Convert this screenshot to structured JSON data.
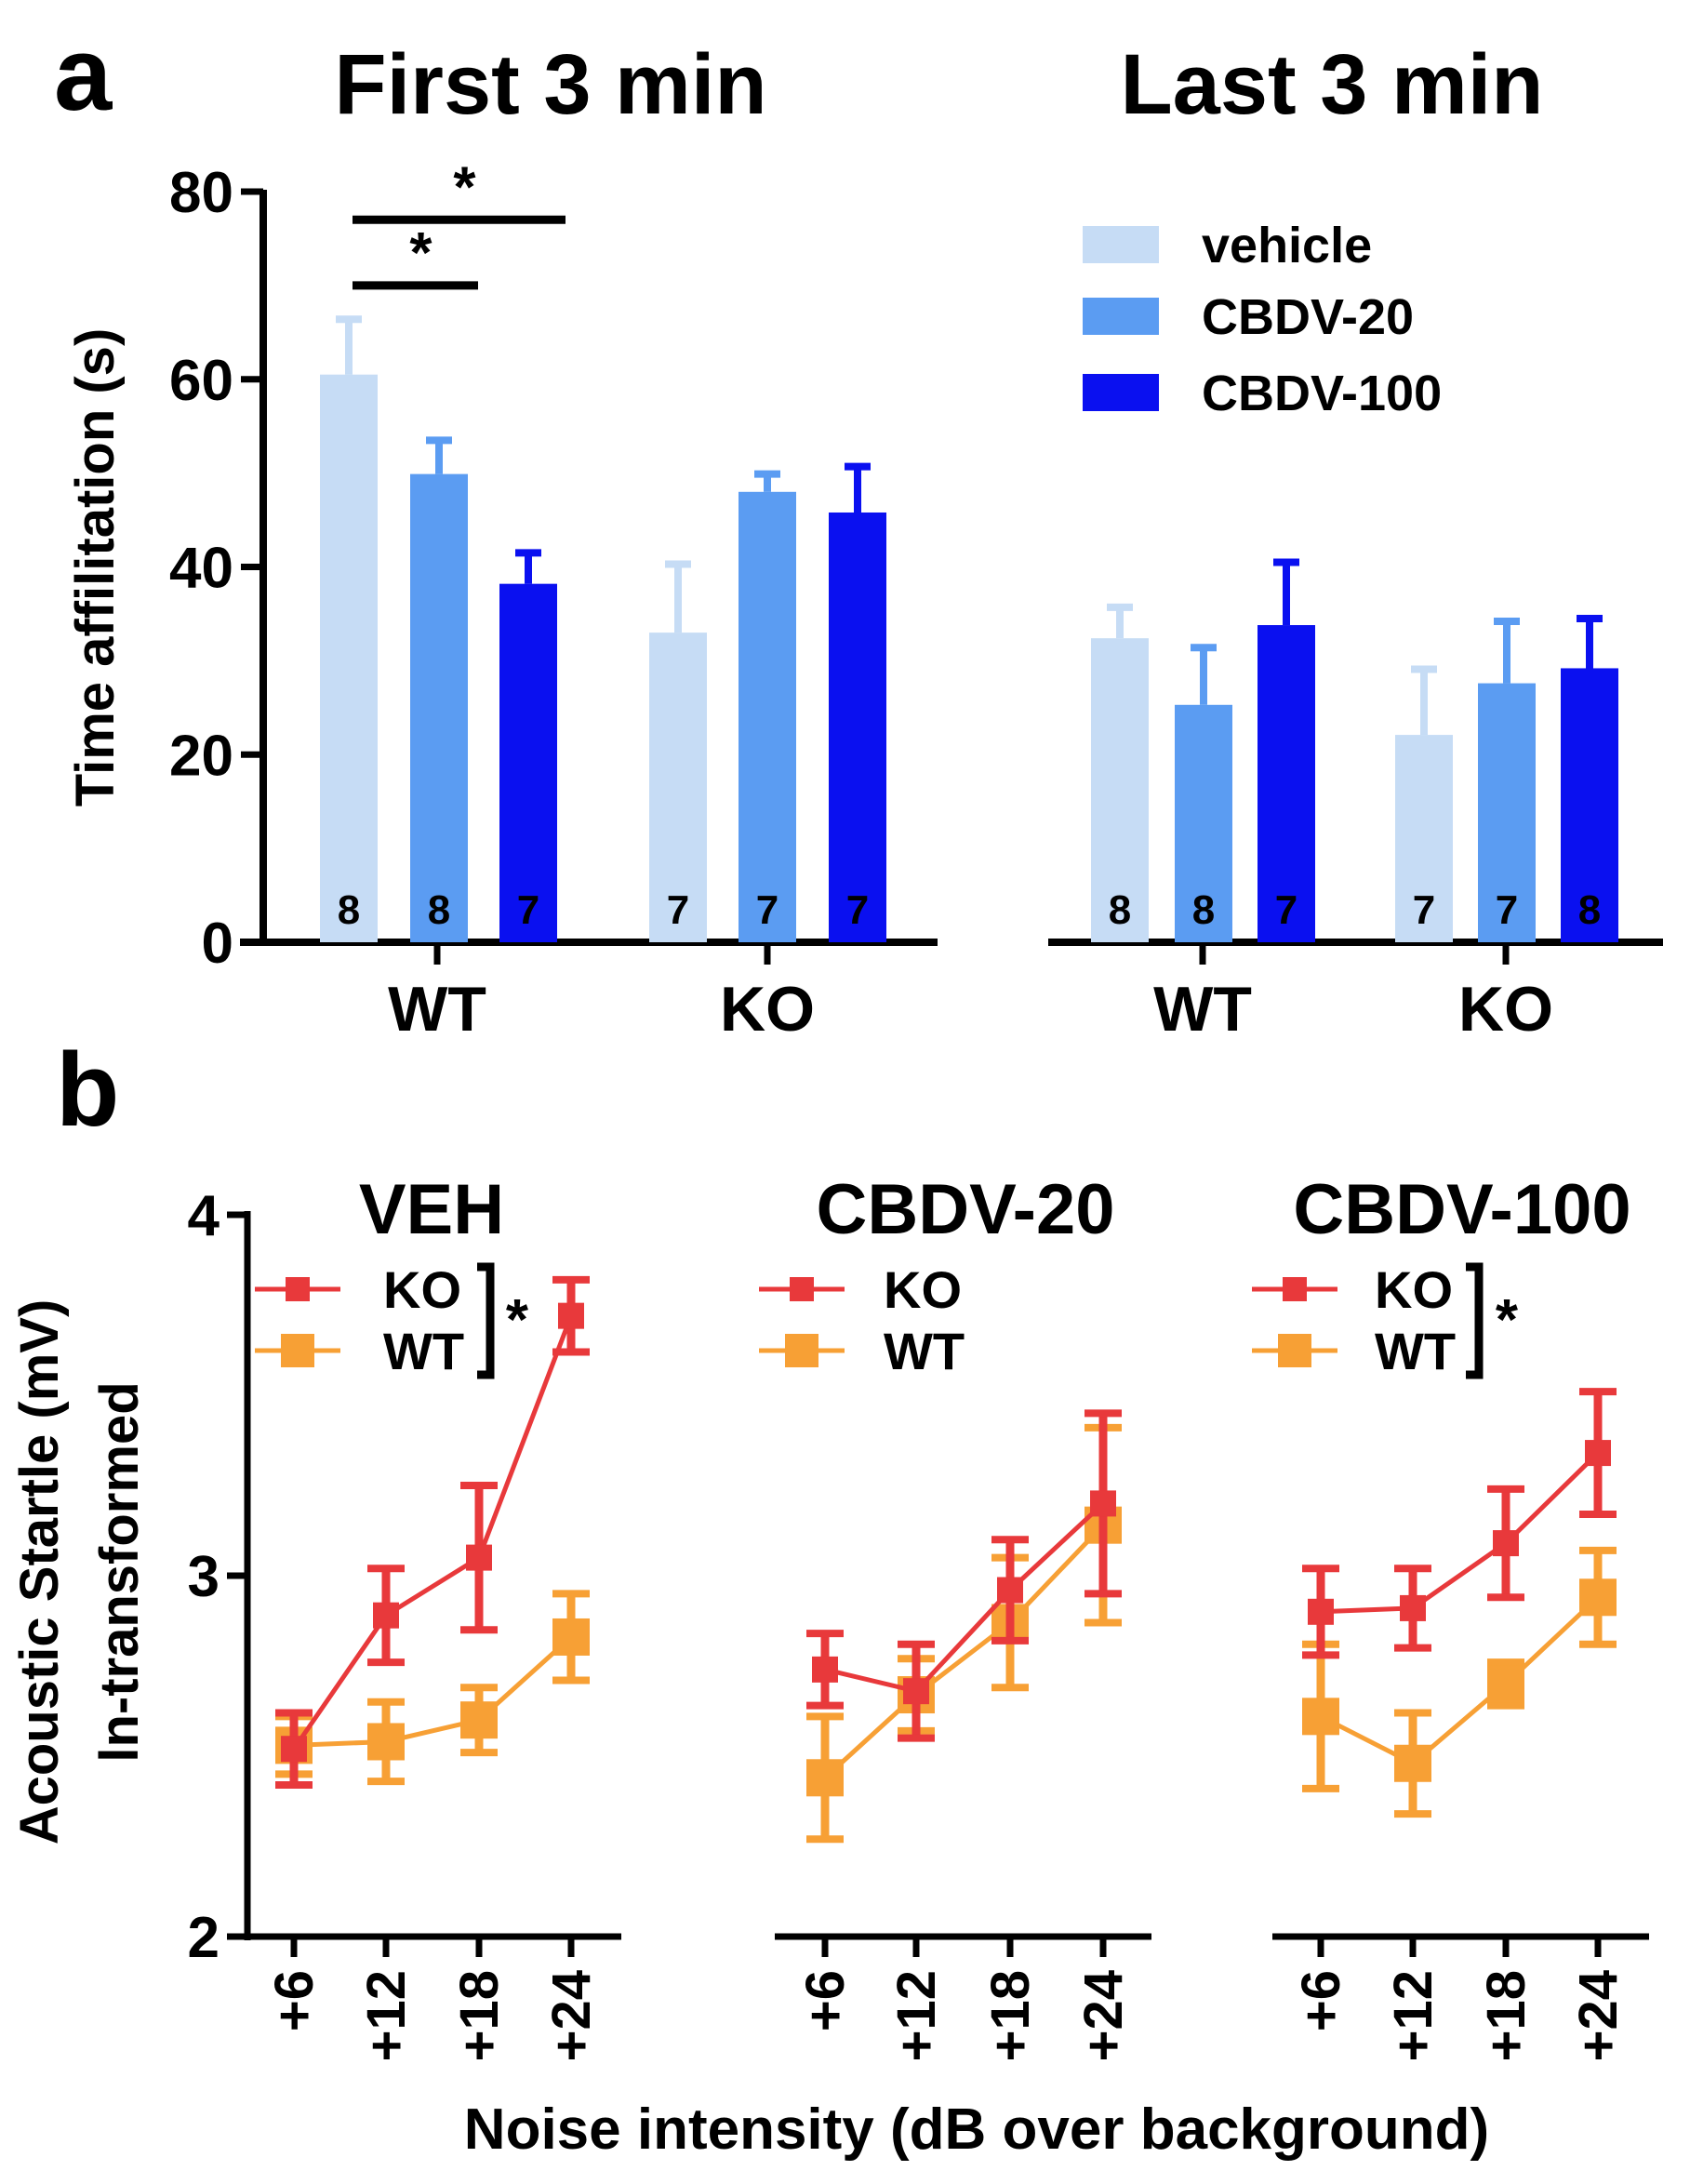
{
  "figure": {
    "panel_a_letter": "a",
    "panel_b_letter": "b"
  },
  "chart_data": [
    {
      "id": "a_first",
      "type": "bar",
      "title": "First 3 min",
      "ylabel": "Time affilitation (s)",
      "xlabel": "",
      "ylim": [
        0,
        80
      ],
      "yticks": [
        0,
        20,
        40,
        60,
        80
      ],
      "grid": false,
      "categories": [
        "WT",
        "KO"
      ],
      "legend_position": "top-right",
      "series": [
        {
          "name": "vehicle",
          "color": "#c6dcf5",
          "values": [
            60.5,
            33.0
          ],
          "errors": [
            5.9,
            7.3
          ],
          "n": [
            "8",
            "7"
          ],
          "n_color": "#0a0a2a"
        },
        {
          "name": "CBDV-20",
          "color": "#5b9cf2",
          "values": [
            49.9,
            48.0
          ],
          "errors": [
            3.6,
            1.9
          ],
          "n": [
            "8",
            "7"
          ],
          "n_color": "#0a0a2a"
        },
        {
          "name": "CBDV-100",
          "color": "#0a10f0",
          "values": [
            38.2,
            45.8
          ],
          "errors": [
            3.3,
            4.9
          ],
          "n": [
            "7",
            "7"
          ],
          "n_color": "#0a0a55"
        }
      ],
      "significance": [
        {
          "from": "WT vehicle",
          "to": "WT CBDV-100",
          "label": "*",
          "level": 77
        },
        {
          "from": "WT vehicle",
          "to": "WT CBDV-20",
          "label": "*",
          "level": 70
        }
      ]
    },
    {
      "id": "a_last",
      "type": "bar",
      "title": "Last 3 min",
      "ylabel": "",
      "ylim": [
        0,
        80
      ],
      "grid": false,
      "categories": [
        "WT",
        "KO"
      ],
      "series": [
        {
          "name": "vehicle",
          "color": "#c6dcf5",
          "values": [
            32.4,
            22.1
          ],
          "errors": [
            3.3,
            7.0
          ],
          "n": [
            "8",
            "7"
          ],
          "n_color": "#0a0a2a"
        },
        {
          "name": "CBDV-20",
          "color": "#5b9cf2",
          "values": [
            25.3,
            27.6
          ],
          "errors": [
            6.1,
            6.6
          ],
          "n": [
            "8",
            "7"
          ],
          "n_color": "#0a0a2a"
        },
        {
          "name": "CBDV-100",
          "color": "#0a10f0",
          "values": [
            33.8,
            29.2
          ],
          "errors": [
            6.7,
            5.3
          ],
          "n": [
            "7",
            "8"
          ],
          "n_color": "#0a0a55"
        }
      ]
    },
    {
      "id": "b_veh",
      "type": "line",
      "title": "VEH",
      "ylabel": "Acoustic Startle (mV)",
      "ylabel2": "ln-transformed",
      "ylim": [
        2,
        4
      ],
      "yticks": [
        2,
        3,
        4
      ],
      "x": [
        "+6",
        "+12",
        "+18",
        "+24"
      ],
      "grid": false,
      "legend_position": "top-left",
      "significance_label": "*",
      "series": [
        {
          "name": "KO",
          "color": "#e8393b",
          "values": [
            2.52,
            2.89,
            3.05,
            3.72
          ],
          "errors": [
            0.1,
            0.13,
            0.2,
            0.1
          ]
        },
        {
          "name": "WT",
          "color": "#f7a035",
          "values": [
            2.53,
            2.54,
            2.6,
            2.83
          ],
          "errors": [
            0.08,
            0.11,
            0.09,
            0.12
          ]
        }
      ]
    },
    {
      "id": "b_cbdv20",
      "type": "line",
      "title": "CBDV-20",
      "ylim": [
        2,
        4
      ],
      "x": [
        "+6",
        "+12",
        "+18",
        "+24"
      ],
      "grid": false,
      "legend_position": "top-left",
      "significance_label": "",
      "series": [
        {
          "name": "KO",
          "color": "#e8393b",
          "values": [
            2.74,
            2.68,
            2.96,
            3.2
          ],
          "errors": [
            0.1,
            0.13,
            0.14,
            0.25
          ]
        },
        {
          "name": "WT",
          "color": "#f7a035",
          "values": [
            2.44,
            2.67,
            2.87,
            3.14
          ],
          "errors": [
            0.17,
            0.1,
            0.18,
            0.27
          ]
        }
      ]
    },
    {
      "id": "b_cbdv100",
      "type": "line",
      "title": "CBDV-100",
      "ylim": [
        2,
        4
      ],
      "x": [
        "+6",
        "+12",
        "+18",
        "+24"
      ],
      "grid": false,
      "legend_position": "top-left",
      "significance_label": "*",
      "series": [
        {
          "name": "KO",
          "color": "#e8393b",
          "values": [
            2.9,
            2.91,
            3.09,
            3.34
          ],
          "errors": [
            0.12,
            0.11,
            0.15,
            0.17
          ]
        },
        {
          "name": "WT",
          "color": "#f7a035",
          "values": [
            2.61,
            2.48,
            2.7,
            2.94
          ],
          "errors": [
            0.2,
            0.14,
            0.06,
            0.13
          ]
        }
      ]
    }
  ],
  "panel_b_xlabel": "Noise intensity (dB over background)"
}
